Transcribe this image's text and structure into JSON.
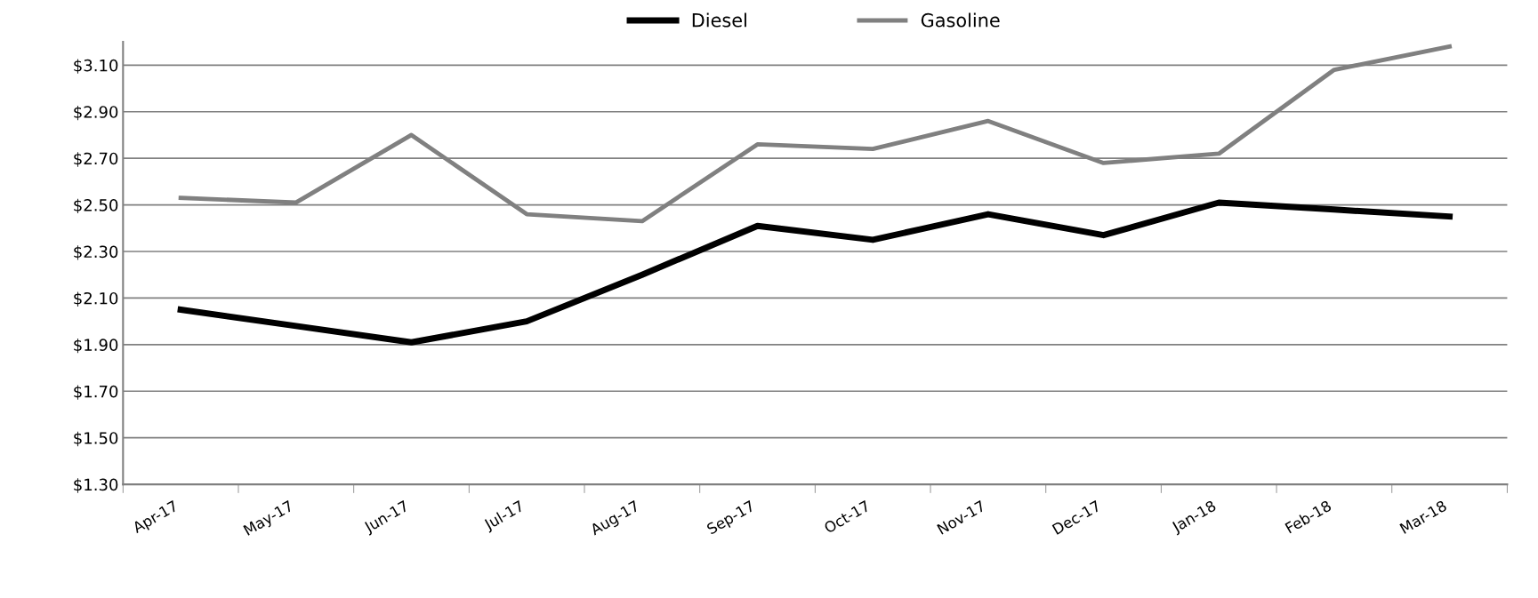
{
  "chart_data": {
    "type": "line",
    "categories": [
      "Apr-17",
      "May-17",
      "Jun-17",
      "Jul-17",
      "Aug-17",
      "Sep-17",
      "Oct-17",
      "Nov-17",
      "Dec-17",
      "Jan-18",
      "Feb-18",
      "Mar-18"
    ],
    "series": [
      {
        "name": "Diesel",
        "color": "#000000",
        "values": [
          2.05,
          1.98,
          1.91,
          2.0,
          2.2,
          2.41,
          2.35,
          2.46,
          2.37,
          2.51,
          2.48,
          2.45
        ]
      },
      {
        "name": "Gasoline",
        "color": "#808080",
        "values": [
          2.53,
          2.51,
          2.8,
          2.46,
          2.43,
          2.76,
          2.74,
          2.86,
          2.68,
          2.72,
          3.08,
          3.18
        ]
      }
    ],
    "ylim": [
      1.3,
      3.2
    ],
    "yticks": [
      {
        "value": 1.3,
        "label": "$1.30"
      },
      {
        "value": 1.5,
        "label": "$1.50"
      },
      {
        "value": 1.7,
        "label": "$1.70"
      },
      {
        "value": 1.9,
        "label": "$1.90"
      },
      {
        "value": 2.1,
        "label": "$2.10"
      },
      {
        "value": 2.3,
        "label": "$2.30"
      },
      {
        "value": 2.5,
        "label": "$2.50"
      },
      {
        "value": 2.7,
        "label": "$2.70"
      },
      {
        "value": 2.9,
        "label": "$2.90"
      },
      {
        "value": 3.1,
        "label": "$3.10"
      }
    ],
    "grid": "y",
    "legend": "top",
    "marker": "none",
    "line_style": "solid"
  }
}
